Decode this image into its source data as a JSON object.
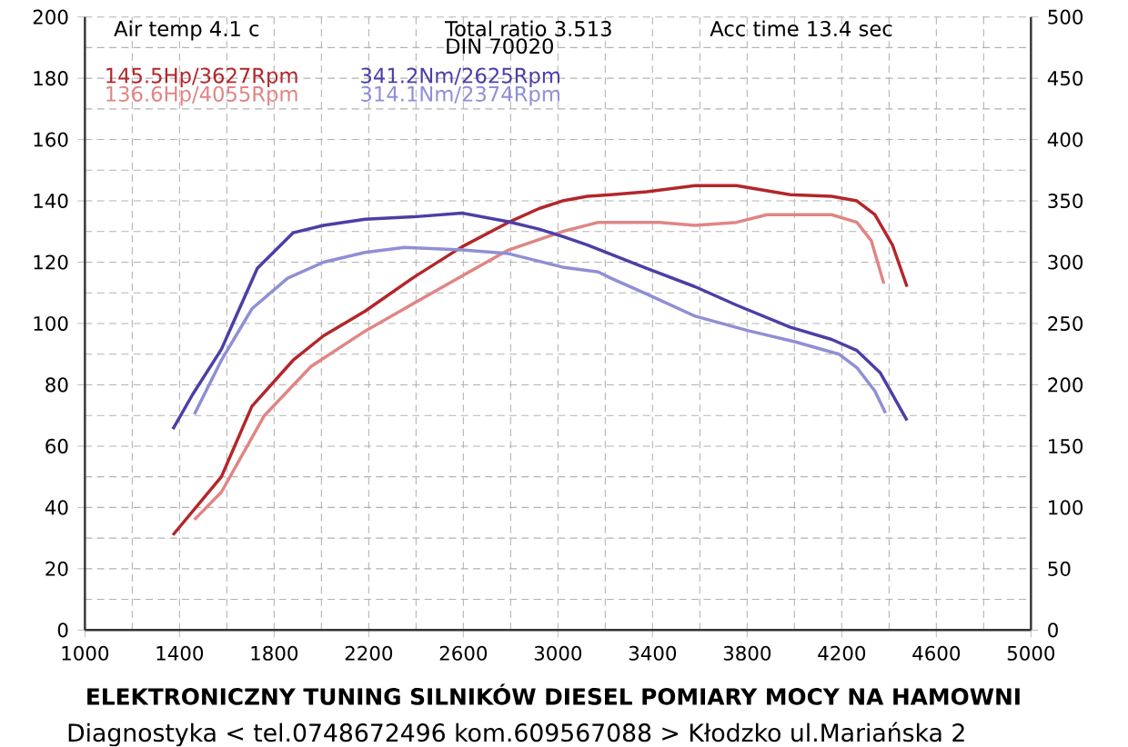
{
  "chart_data": {
    "type": "line",
    "annotations": [
      "Air temp   4.1 c",
      "Total ratio 3.513",
      "DIN 70020",
      "Acc time   13.4 sec",
      "ELEKTRONICZNY  TUNING  SILNIKÓW  DIESEL   POMIARY  MOCY  NA  HAMOWNI",
      "Diagnostyka   < tel.0748672496   kom.609567088 > Kłodzko ul.Mariańska 2"
    ],
    "xlim": [
      1000,
      5000
    ],
    "xticks": [
      1000,
      1400,
      1800,
      2200,
      2600,
      3000,
      3400,
      3800,
      4200,
      4600,
      5000
    ],
    "ylim": [
      0,
      200
    ],
    "yticks": [
      0,
      20,
      40,
      60,
      80,
      100,
      120,
      140,
      160,
      180,
      200
    ],
    "y2lim": [
      0,
      500
    ],
    "y2ticks": [
      0,
      50,
      100,
      150,
      200,
      250,
      300,
      350,
      400,
      450,
      500
    ],
    "grid": true,
    "line_style": "solid",
    "marker": "none",
    "series": [
      {
        "name": "145.5Hp/3627Rpm",
        "color": "#b3262a",
        "x": [
          1372,
          1577,
          1706,
          1880,
          2009,
          2184,
          2389,
          2594,
          2791,
          2920,
          3019,
          3125,
          3224,
          3376,
          3580,
          3755,
          3983,
          4157,
          4264,
          4340,
          4415,
          4476
        ],
        "values": [
          31,
          50,
          73,
          88,
          96,
          104,
          115,
          125,
          133,
          137.5,
          140,
          141.5,
          142,
          143,
          145,
          145,
          142,
          141.5,
          140,
          135.5,
          125.5,
          112
        ]
      },
      {
        "name": "136.6Hp/4055Rpm",
        "color": "#e08585",
        "x": [
          1463,
          1577,
          1759,
          1956,
          2184,
          2389,
          2594,
          2791,
          3019,
          3171,
          3224,
          3429,
          3580,
          3755,
          3884,
          4157,
          4264,
          4325,
          4378
        ],
        "values": [
          36,
          45,
          70,
          86,
          97.5,
          106.5,
          115.5,
          124,
          130,
          133,
          133,
          133,
          132,
          133,
          135.5,
          135.5,
          133,
          127,
          113
        ]
      },
      {
        "name": "341.2Nm/2625Rpm",
        "color": "#4b3fa6",
        "axis": "y2",
        "x": [
          1372,
          1455,
          1577,
          1729,
          1880,
          2009,
          2184,
          2389,
          2594,
          2791,
          2920,
          3019,
          3125,
          3376,
          3580,
          3755,
          3983,
          4157,
          4264,
          4362,
          4476
        ],
        "values": [
          164,
          192,
          229,
          295,
          324,
          330,
          335,
          337,
          340,
          333,
          327,
          321,
          314,
          295,
          280,
          265,
          247,
          237,
          228,
          210,
          171
        ]
      },
      {
        "name": "314.1Nm/2374Rpm",
        "color": "#8f8fd6",
        "axis": "y2",
        "x": [
          1463,
          1577,
          1706,
          1857,
          2009,
          2184,
          2351,
          2594,
          2791,
          3019,
          3171,
          3224,
          3376,
          3580,
          3808,
          4005,
          4188,
          4264,
          4340,
          4385
        ],
        "values": [
          176,
          220,
          262,
          287,
          300,
          308,
          312,
          310,
          307,
          296,
          292,
          287,
          274,
          256,
          244,
          235,
          225,
          214,
          195,
          177
        ]
      }
    ]
  }
}
